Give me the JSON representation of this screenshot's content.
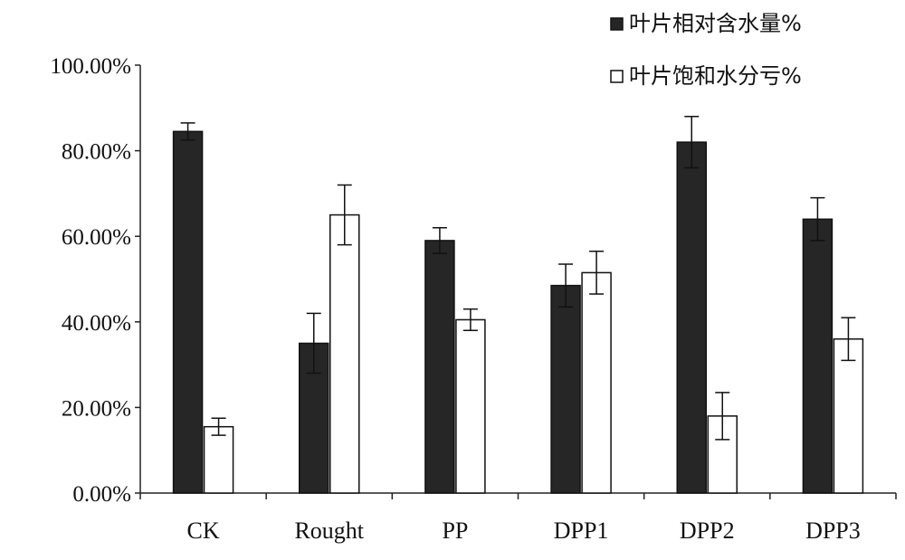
{
  "chart_data": {
    "type": "bar",
    "categories": [
      "CK",
      "Rought",
      "PP",
      "DPP1",
      "DPP2",
      "DPP3"
    ],
    "series": [
      {
        "name": "叶片相对含水量%",
        "fill": "#262626",
        "values": [
          84.5,
          35.0,
          59.0,
          48.5,
          82.0,
          64.0
        ],
        "errors": [
          2.0,
          7.0,
          3.0,
          5.0,
          6.0,
          5.0
        ]
      },
      {
        "name": "叶片饱和水分亏%",
        "fill": "#ffffff",
        "values": [
          15.5,
          65.0,
          40.5,
          51.5,
          18.0,
          36.0
        ],
        "errors": [
          2.0,
          7.0,
          2.5,
          5.0,
          5.5,
          5.0
        ]
      }
    ],
    "yticks": [
      "0.00%",
      "20.00%",
      "40.00%",
      "60.00%",
      "80.00%",
      "100.00%"
    ],
    "ylim": [
      0,
      100
    ],
    "legend_position": "top-right",
    "grid": false
  }
}
